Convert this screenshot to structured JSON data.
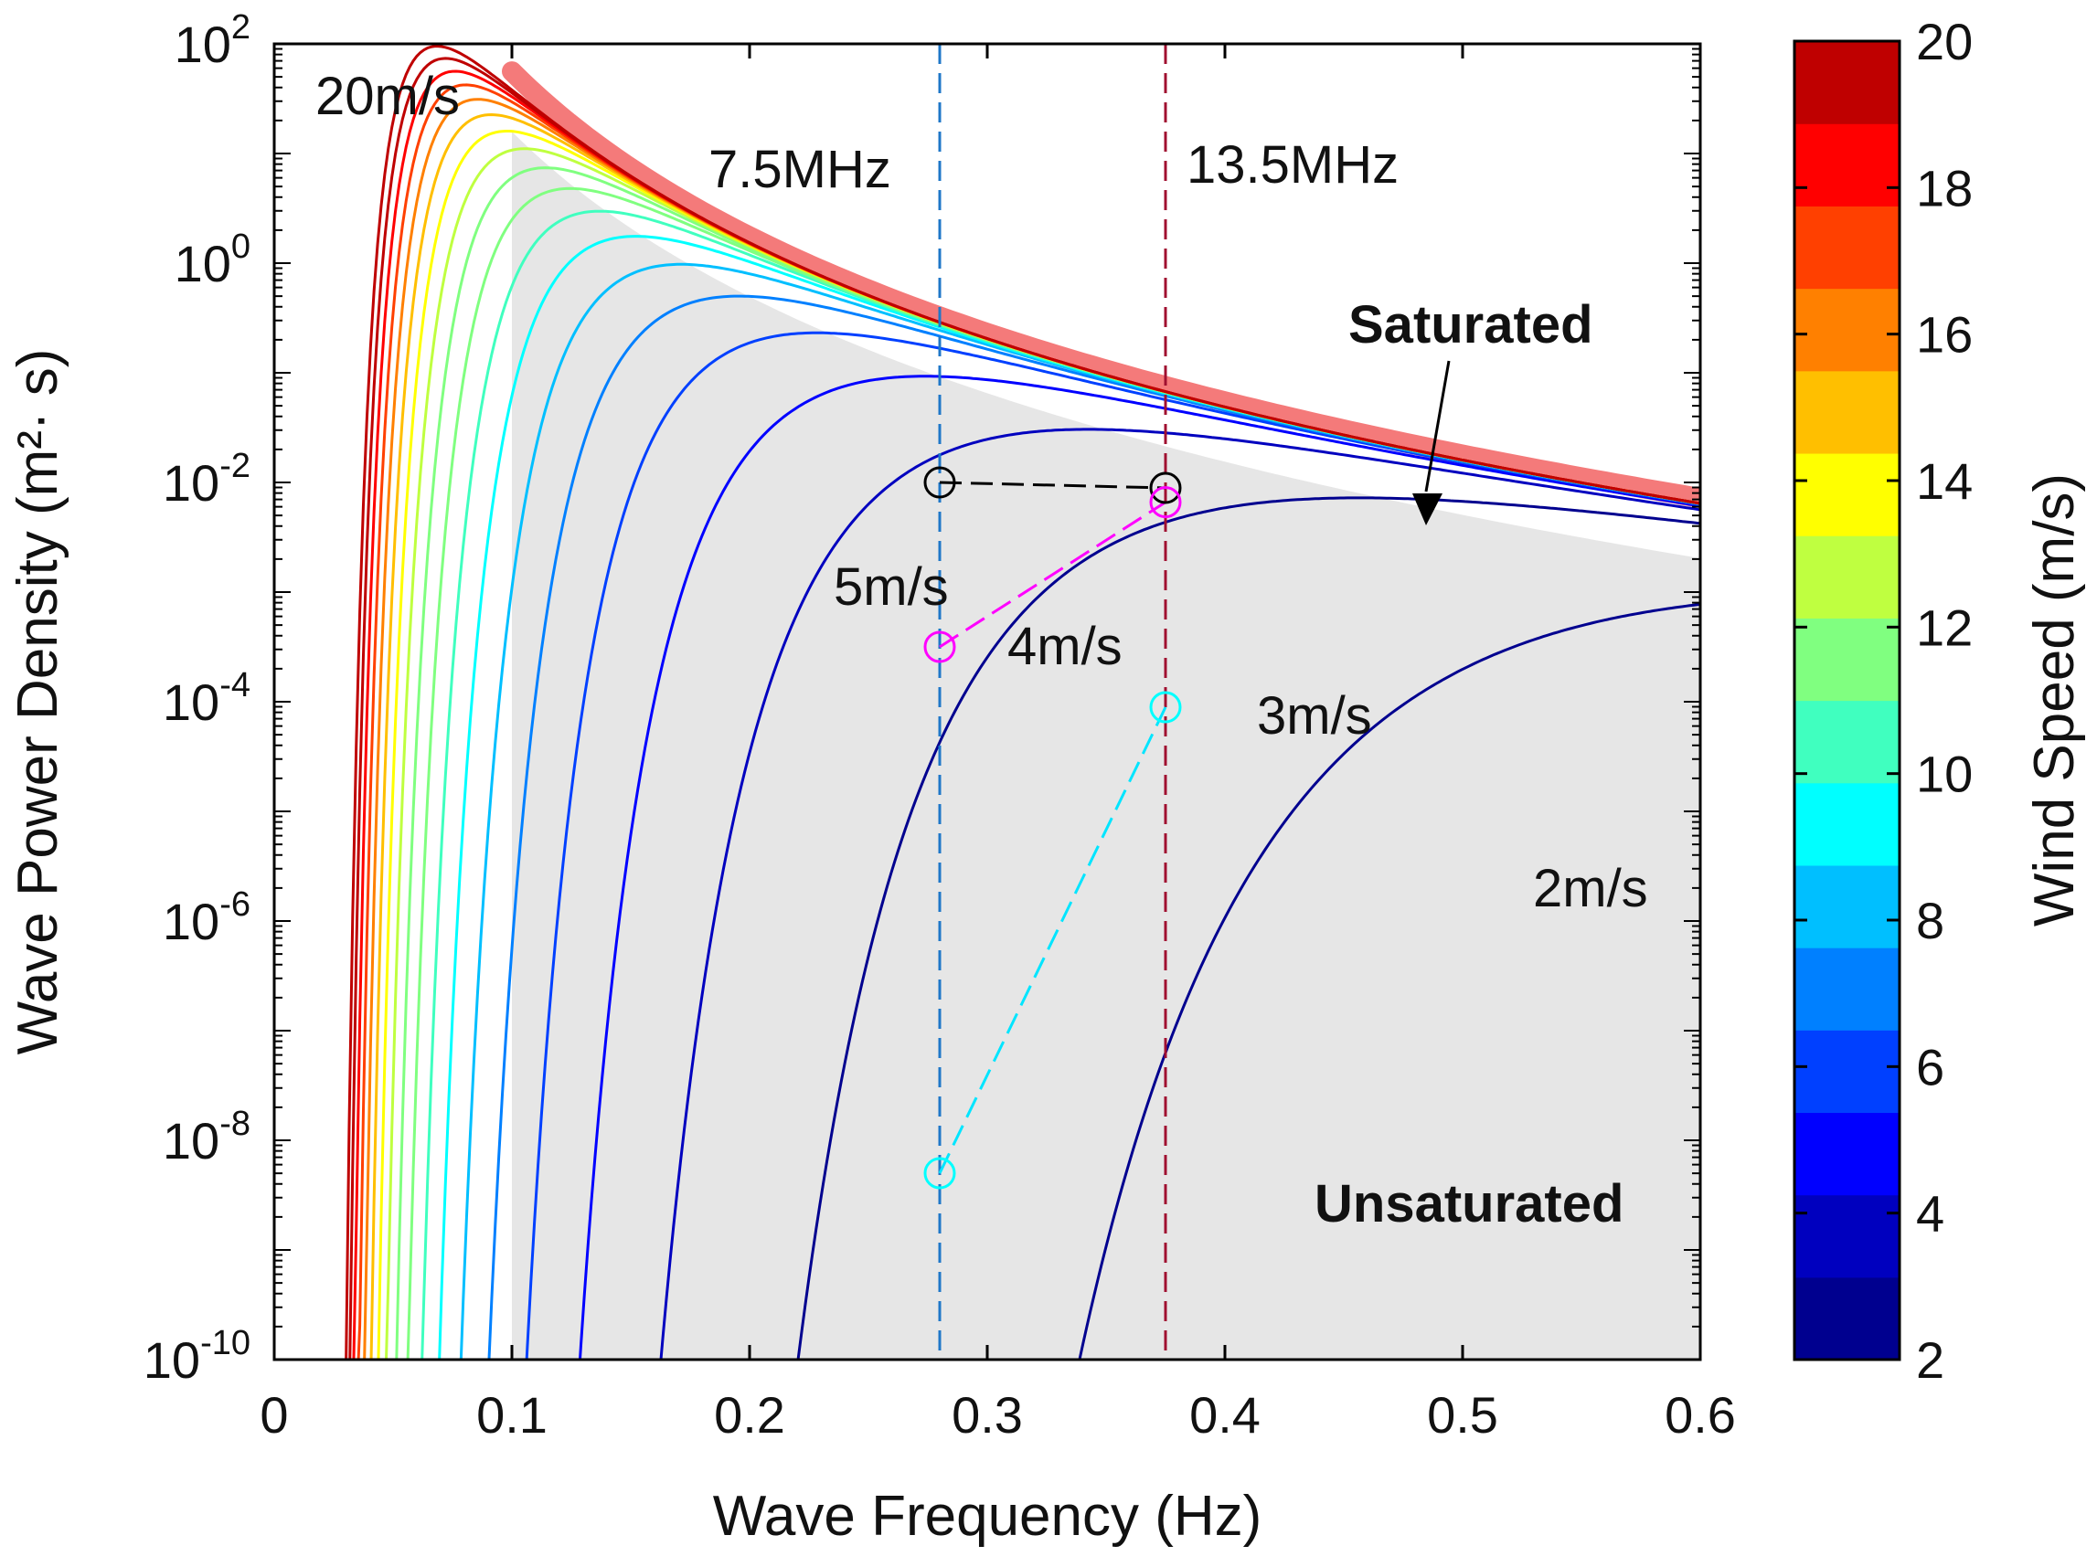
{
  "chart_data": {
    "type": "line",
    "title": "",
    "xlabel": "Wave Frequency (Hz)",
    "ylabel": "Wave Power Density (m²· s)",
    "xlim": [
      0,
      0.6
    ],
    "ylim_log10": [
      -10,
      2
    ],
    "x_ticks": [
      0,
      0.1,
      0.2,
      0.3,
      0.4,
      0.5,
      0.6
    ],
    "x_tick_labels": [
      "0",
      "0.1",
      "0.2",
      "0.3",
      "0.4",
      "0.5",
      "0.6"
    ],
    "y_tick_exponents": [
      2,
      0,
      -2,
      -4,
      -6,
      -8,
      -10
    ],
    "y_tick_base": "10",
    "y_tick_exp_labels": [
      "2",
      "0",
      "-2",
      "-4",
      "-6",
      "-8",
      "-10"
    ],
    "colorbar": {
      "label": "Wind Speed (m/s)",
      "min": 2,
      "max": 20,
      "ticks": [
        2,
        4,
        6,
        8,
        10,
        12,
        14,
        16,
        18,
        20
      ],
      "tick_labels": [
        "2",
        "4",
        "6",
        "8",
        "10",
        "12",
        "14",
        "16",
        "18",
        "20"
      ],
      "levels": 18,
      "colormap": [
        "#00008f",
        "#0000bf",
        "#0000ff",
        "#0040ff",
        "#0080ff",
        "#00bfff",
        "#00ffff",
        "#40ffbf",
        "#80ff80",
        "#bfff40",
        "#ffff00",
        "#ffbf00",
        "#ff8000",
        "#ff4000",
        "#ff0000",
        "#bf0000"
      ]
    },
    "wind_speeds": [
      2,
      3,
      4,
      5,
      6,
      7,
      8,
      9,
      10,
      11,
      12,
      13,
      14,
      15,
      16,
      17,
      18,
      19,
      20
    ],
    "saturation_curve": "S(f) = 8.1e-3 * 9.81^2 / ((2*pi)^4 * f^5)",
    "spectrum_model": "Pierson-Moskowitz, peak frequency 0.877*9.81/(2*pi*U)",
    "markers": [
      {
        "name": "black-7.5",
        "x": 0.28,
        "y_log10": -2.0,
        "color": "#000000"
      },
      {
        "name": "black-13.5",
        "x": 0.375,
        "y_log10": -2.05,
        "color": "#000000"
      },
      {
        "name": "magenta-13.5",
        "x": 0.375,
        "y_log10": -2.18,
        "color": "#ff00ff"
      },
      {
        "name": "magenta-7.5",
        "x": 0.28,
        "y_log10": -3.5,
        "color": "#ff00ff"
      },
      {
        "name": "cyan-13.5",
        "x": 0.375,
        "y_log10": -4.05,
        "color": "#00ffff"
      },
      {
        "name": "cyan-7.5",
        "x": 0.28,
        "y_log10": -8.3,
        "color": "#00ffff"
      }
    ],
    "vlines": [
      {
        "x": 0.28,
        "label": "7.5MHz",
        "color": "#1f77c8"
      },
      {
        "x": 0.375,
        "label": "13.5MHz",
        "color": "#a01030"
      }
    ],
    "annotations": {
      "w20": "20m/s",
      "w5": "5m/s",
      "w4": "4m/s",
      "w3": "3m/s",
      "w2": "2m/s",
      "saturated": "Saturated",
      "unsaturated": "Unsaturated",
      "f75": "7.5MHz",
      "f135": "13.5MHz"
    }
  }
}
